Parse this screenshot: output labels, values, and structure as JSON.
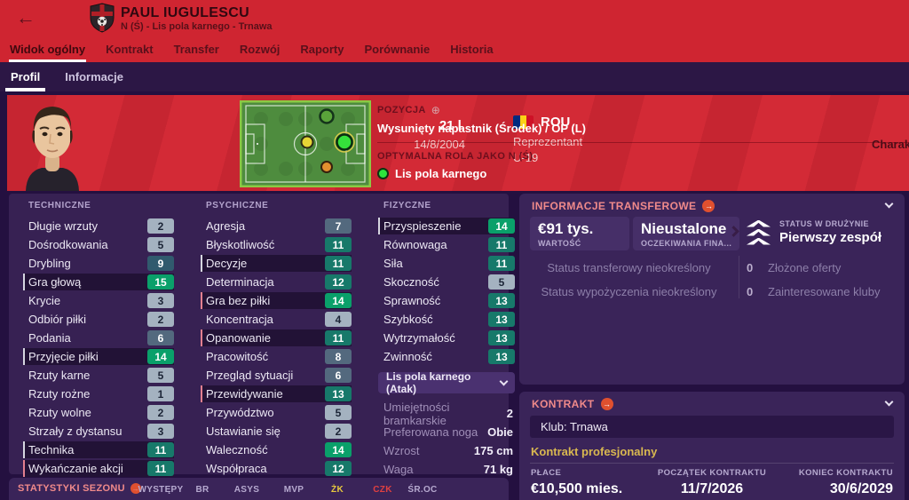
{
  "colors": {
    "red": "#cf2531",
    "page_bg": "#241040",
    "panel_bg": "#3a2459",
    "header_pink": "#f08a8a",
    "accent_orange": "#e0502f",
    "gold": "#d9b850",
    "chip_green": "#0aa06a",
    "chip_teal": "#17796a",
    "chip_slate": "#53697e",
    "chip_gray": "#a4b2c0",
    "yellow_card": "#e7c93e",
    "red_card": "#e04040",
    "role_dot_green": "#2ee43c"
  },
  "titlebar": {
    "back_icon": "←",
    "player_name": "PAUL IUGULESCU",
    "player_subtitle": "N (Ś) - Lis pola karnego - Trnawa"
  },
  "tabs": {
    "items": [
      "Widok ogólny",
      "Kontrakt",
      "Transfer",
      "Rozwój",
      "Raporty",
      "Porównanie",
      "Historia"
    ],
    "active": "Widok ogólny"
  },
  "subtabs": {
    "items": [
      "Profil",
      "Informacje"
    ],
    "active": "Profil"
  },
  "player_bar": {
    "age": "21 l.",
    "birth_date": "14/8/2004",
    "nationality": "ROU",
    "rep_line1": "Reprezentant",
    "rep_line2": "U-19",
    "position_label": "POZYCJA",
    "position_value": "Wysunięty napastnik (Środek) / OP (L)",
    "best_role_label": "OPTYMALNA ROLA JAKO N (Ś)",
    "best_role_value": "Lis pola karnego",
    "right_edge_text": "Charakte"
  },
  "attributes": {
    "technical": {
      "title": "TECHNICZNE",
      "rows": [
        {
          "label": "Długie wrzuty",
          "value": 2
        },
        {
          "label": "Dośrodkowania",
          "value": 5
        },
        {
          "label": "Drybling",
          "value": 9
        },
        {
          "label": "Gra głową",
          "value": 15,
          "highlight": true,
          "marker": "white"
        },
        {
          "label": "Krycie",
          "value": 3
        },
        {
          "label": "Odbiór piłki",
          "value": 2
        },
        {
          "label": "Podania",
          "value": 6
        },
        {
          "label": "Przyjęcie piłki",
          "value": 14,
          "highlight": true,
          "marker": "white"
        },
        {
          "label": "Rzuty karne",
          "value": 5
        },
        {
          "label": "Rzuty rożne",
          "value": 1
        },
        {
          "label": "Rzuty wolne",
          "value": 2
        },
        {
          "label": "Strzały z dystansu",
          "value": 3
        },
        {
          "label": "Technika",
          "value": 11,
          "highlight": true,
          "marker": "white"
        },
        {
          "label": "Wykańczanie akcji",
          "value": 11,
          "highlight": true,
          "marker": "pink"
        }
      ]
    },
    "mental": {
      "title": "PSYCHICZNE",
      "rows": [
        {
          "label": "Agresja",
          "value": 7
        },
        {
          "label": "Błyskotliwość",
          "value": 11
        },
        {
          "label": "Decyzje",
          "value": 11,
          "highlight": true,
          "marker": "white"
        },
        {
          "label": "Determinacja",
          "value": 12
        },
        {
          "label": "Gra bez piłki",
          "value": 14,
          "highlight": true,
          "marker": "pink"
        },
        {
          "label": "Koncentracja",
          "value": 4
        },
        {
          "label": "Opanowanie",
          "value": 11,
          "highlight": true,
          "marker": "pink"
        },
        {
          "label": "Pracowitość",
          "value": 8
        },
        {
          "label": "Przegląd sytuacji",
          "value": 6
        },
        {
          "label": "Przewidywanie",
          "value": 13,
          "highlight": true,
          "marker": "pink"
        },
        {
          "label": "Przywództwo",
          "value": 5
        },
        {
          "label": "Ustawianie się",
          "value": 2
        },
        {
          "label": "Waleczność",
          "value": 14
        },
        {
          "label": "Współpraca",
          "value": 12
        }
      ]
    },
    "physical": {
      "title": "FIZYCZNE",
      "rows": [
        {
          "label": "Przyspieszenie",
          "value": 14,
          "highlight": true,
          "marker": "white"
        },
        {
          "label": "Równowaga",
          "value": 11
        },
        {
          "label": "Siła",
          "value": 11
        },
        {
          "label": "Skoczność",
          "value": 5
        },
        {
          "label": "Sprawność",
          "value": 13
        },
        {
          "label": "Szybkość",
          "value": 13
        },
        {
          "label": "Wytrzymałość",
          "value": 13
        },
        {
          "label": "Zwinność",
          "value": 13
        }
      ]
    },
    "role_dropdown": "Lis pola karnego (Atak)",
    "extra": [
      {
        "label": "Umiejętności bramkarskie",
        "value": "2"
      },
      {
        "label": "Preferowana noga",
        "value": "Obie"
      },
      {
        "label": "Wzrost",
        "value": "175 cm"
      },
      {
        "label": "Waga",
        "value": "71 kg"
      }
    ]
  },
  "transfer_info": {
    "title": "INFORMACJE TRANSFEROWE",
    "value_amount": "€91 tys.",
    "value_caption": "WARTOŚĆ",
    "expectation_amount": "Nieustalone",
    "expectation_caption": "OCZEKIWANIA FINA...",
    "squad_status_caption": "STATUS W DRUŻYNIE",
    "squad_status_value": "Pierwszy zespół",
    "status_lines": [
      "Status transferowy nieokreślony",
      "Status wypożyczenia nieokreślony"
    ],
    "counters": [
      {
        "count": "0",
        "label": "Złożone oferty"
      },
      {
        "count": "0",
        "label": "Zainteresowane kluby"
      }
    ]
  },
  "contract": {
    "title": "KONTRAKT",
    "club_line": "Klub: Trnawa",
    "type_line": "Kontrakt profesjonalny",
    "columns": [
      {
        "label": "PŁACE",
        "value": "€10,500 mies."
      },
      {
        "label": "POCZĄTEK KONTRAKTU",
        "value": "11/7/2026"
      },
      {
        "label": "KONIEC KONTRAKTU",
        "value": "30/6/2029"
      }
    ]
  },
  "season_stats": {
    "title": "STATYSTYKI SEZONU",
    "columns": [
      {
        "label": "WYSTĘPY",
        "color": ""
      },
      {
        "label": "BR",
        "color": ""
      },
      {
        "label": "ASYS",
        "color": ""
      },
      {
        "label": "MVP",
        "color": ""
      },
      {
        "label": "ŻK",
        "color": "#e7c93e"
      },
      {
        "label": "CZK",
        "color": "#e04040"
      },
      {
        "label": "ŚR.OC",
        "color": ""
      }
    ]
  }
}
